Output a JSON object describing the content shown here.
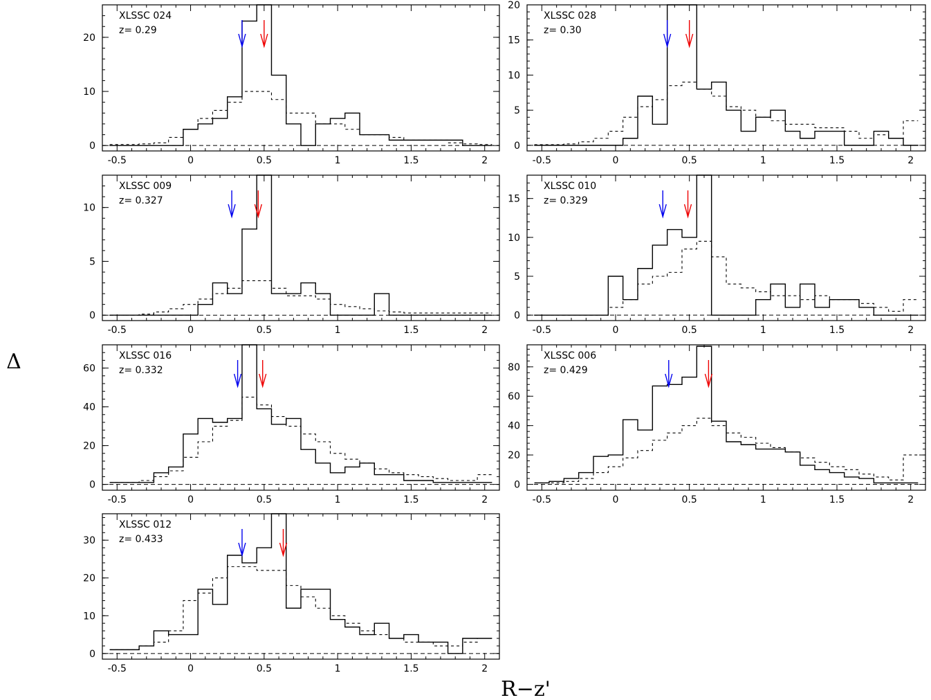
{
  "figure": {
    "ylabel": "Δ",
    "xlabel": "R−z'"
  },
  "chart_data": [
    {
      "type": "histogram",
      "name": "XLSSC 024",
      "redshift_label": "z= 0.29",
      "xlim": [
        -0.6,
        2.1
      ],
      "ylim": [
        -1,
        26
      ],
      "xticks": [
        -0.5,
        0,
        0.5,
        1,
        1.5,
        2
      ],
      "xtick_labels": [
        "-0.5",
        "0",
        "0.5",
        "1",
        "1.5",
        "2"
      ],
      "yticks": [
        0,
        10,
        20
      ],
      "ytick_labels": [
        "0",
        "10",
        "20"
      ],
      "bin_edges": [
        -0.55,
        -0.45,
        -0.35,
        -0.25,
        -0.15,
        -0.05,
        0.05,
        0.15,
        0.25,
        0.35,
        0.45,
        0.55,
        0.65,
        0.75,
        0.85,
        0.95,
        1.05,
        1.15,
        1.25,
        1.35,
        1.45,
        1.55,
        1.65,
        1.75,
        1.85,
        1.95,
        2.05
      ],
      "observed": [
        0,
        0,
        0,
        0,
        0,
        3,
        4,
        5,
        9,
        23,
        26,
        13,
        4,
        0,
        4,
        5,
        6,
        2,
        2,
        1,
        1,
        1,
        1,
        1,
        0,
        0
      ],
      "background": [
        0.2,
        0.2,
        0.3,
        0.5,
        1.5,
        3,
        5,
        6.5,
        8,
        10,
        10,
        8.5,
        6,
        6,
        4,
        4,
        3,
        2,
        2,
        1.5,
        1,
        1,
        1,
        0.5,
        0.3,
        0.2
      ],
      "blue_arrow_x": 0.35,
      "red_arrow_x": 0.5
    },
    {
      "type": "histogram",
      "name": "XLSSC 028",
      "redshift_label": "z= 0.30",
      "xlim": [
        -0.6,
        2.1
      ],
      "ylim": [
        -0.8,
        20
      ],
      "xticks": [
        -0.5,
        0,
        0.5,
        1,
        1.5,
        2
      ],
      "xtick_labels": [
        "-0.5",
        "0",
        "0.5",
        "1",
        "1.5",
        "2"
      ],
      "yticks": [
        0,
        5,
        10,
        15,
        20
      ],
      "ytick_labels": [
        "0",
        "5",
        "10",
        "15",
        "20"
      ],
      "bin_edges": [
        -0.55,
        -0.45,
        -0.35,
        -0.25,
        -0.15,
        -0.05,
        0.05,
        0.15,
        0.25,
        0.35,
        0.45,
        0.55,
        0.65,
        0.75,
        0.85,
        0.95,
        1.05,
        1.15,
        1.25,
        1.35,
        1.45,
        1.55,
        1.65,
        1.75,
        1.85,
        1.95,
        2.05
      ],
      "observed": [
        0,
        0,
        0,
        0,
        0,
        0,
        1,
        7,
        3,
        20,
        20,
        8,
        9,
        5,
        2,
        4,
        5,
        2,
        1,
        2,
        2,
        0,
        0,
        2,
        1,
        0
      ],
      "background": [
        0.1,
        0.1,
        0.2,
        0.5,
        1,
        2,
        4,
        5.5,
        6.5,
        8.5,
        9,
        8,
        7,
        5.5,
        5,
        4,
        3.5,
        3,
        3,
        2.5,
        2.5,
        2,
        1,
        1.5,
        1,
        3.5
      ],
      "blue_arrow_x": 0.35,
      "red_arrow_x": 0.5
    },
    {
      "type": "histogram",
      "name": "XLSSC 009",
      "redshift_label": "z= 0.327",
      "xlim": [
        -0.6,
        2.1
      ],
      "ylim": [
        -0.5,
        13
      ],
      "xticks": [
        -0.5,
        0,
        0.5,
        1,
        1.5,
        2
      ],
      "xtick_labels": [
        "-0.5",
        "0",
        "0.5",
        "1",
        "1.5",
        "2"
      ],
      "yticks": [
        0,
        5,
        10
      ],
      "ytick_labels": [
        "0",
        "5",
        "10"
      ],
      "bin_edges": [
        -0.55,
        -0.45,
        -0.35,
        -0.25,
        -0.15,
        -0.05,
        0.05,
        0.15,
        0.25,
        0.35,
        0.45,
        0.55,
        0.65,
        0.75,
        0.85,
        0.95,
        1.05,
        1.15,
        1.25,
        1.35,
        1.45,
        1.55,
        1.65,
        1.75,
        1.85,
        1.95,
        2.05
      ],
      "observed": [
        0,
        0,
        0,
        0,
        0,
        0,
        1,
        3,
        2,
        8,
        13,
        2,
        2,
        3,
        2,
        0,
        0,
        0,
        2,
        0,
        0,
        0,
        0,
        0,
        0,
        0
      ],
      "background": [
        0,
        0,
        0.1,
        0.3,
        0.6,
        1,
        1.5,
        2,
        2.5,
        3.2,
        3.2,
        2.5,
        1.8,
        1.8,
        1.5,
        1,
        0.8,
        0.6,
        0.4,
        0.3,
        0.2,
        0.2,
        0.2,
        0.2,
        0.2,
        0.2
      ],
      "blue_arrow_x": 0.28,
      "red_arrow_x": 0.46
    },
    {
      "type": "histogram",
      "name": "XLSSC 010",
      "redshift_label": "z= 0.329",
      "xlim": [
        -0.6,
        2.1
      ],
      "ylim": [
        -0.7,
        18
      ],
      "xticks": [
        -0.5,
        0,
        0.5,
        1,
        1.5,
        2
      ],
      "xtick_labels": [
        "-0.5",
        "0",
        "0.5",
        "1",
        "1.5",
        "2"
      ],
      "yticks": [
        0,
        5,
        10,
        15
      ],
      "ytick_labels": [
        "0",
        "5",
        "10",
        "15"
      ],
      "bin_edges": [
        -0.55,
        -0.45,
        -0.35,
        -0.25,
        -0.15,
        -0.05,
        0.05,
        0.15,
        0.25,
        0.35,
        0.45,
        0.55,
        0.65,
        0.75,
        0.85,
        0.95,
        1.05,
        1.15,
        1.25,
        1.35,
        1.45,
        1.55,
        1.65,
        1.75,
        1.85,
        1.95,
        2.05
      ],
      "observed": [
        0,
        0,
        0,
        0,
        0,
        5,
        2,
        6,
        9,
        11,
        10,
        18,
        0,
        0,
        0,
        2,
        4,
        1,
        4,
        1,
        2,
        2,
        1,
        0,
        0,
        0
      ],
      "background": [
        0,
        0,
        0,
        0,
        0,
        1,
        2,
        4,
        5,
        5.5,
        8.5,
        9.5,
        7.5,
        4,
        3.5,
        3,
        2.5,
        2.5,
        2,
        2.5,
        2,
        2,
        1.5,
        1,
        0.5,
        2
      ],
      "blue_arrow_x": 0.32,
      "red_arrow_x": 0.49
    },
    {
      "type": "histogram",
      "name": "XLSSC 016",
      "redshift_label": "z= 0.332",
      "xlim": [
        -0.6,
        2.1
      ],
      "ylim": [
        -3,
        72
      ],
      "xticks": [
        -0.5,
        0,
        0.5,
        1,
        1.5,
        2
      ],
      "xtick_labels": [
        "-0.5",
        "0",
        "0.5",
        "1",
        "1.5",
        "2"
      ],
      "yticks": [
        0,
        20,
        40,
        60
      ],
      "ytick_labels": [
        "0",
        "20",
        "40",
        "60"
      ],
      "bin_edges": [
        -0.55,
        -0.45,
        -0.35,
        -0.25,
        -0.15,
        -0.05,
        0.05,
        0.15,
        0.25,
        0.35,
        0.45,
        0.55,
        0.65,
        0.75,
        0.85,
        0.95,
        1.05,
        1.15,
        1.25,
        1.35,
        1.45,
        1.55,
        1.65,
        1.75,
        1.85,
        1.95,
        2.05
      ],
      "observed": [
        1,
        1,
        1,
        6,
        9,
        26,
        34,
        32,
        34,
        72,
        39,
        31,
        34,
        18,
        11,
        6,
        9,
        11,
        5,
        5,
        2,
        2,
        1,
        1,
        1,
        1
      ],
      "background": [
        1,
        1,
        2,
        4,
        7,
        14,
        22,
        30,
        33,
        45,
        41,
        35,
        30,
        26,
        22,
        16,
        13,
        11,
        8,
        6,
        5,
        4,
        3,
        2,
        2,
        5
      ],
      "blue_arrow_x": 0.32,
      "red_arrow_x": 0.49
    },
    {
      "type": "histogram",
      "name": "XLSSC 006",
      "redshift_label": "z= 0.429",
      "xlim": [
        -0.6,
        2.1
      ],
      "ylim": [
        -4,
        95
      ],
      "xticks": [
        -0.5,
        0,
        0.5,
        1,
        1.5,
        2
      ],
      "xtick_labels": [
        "-0.5",
        "0",
        "0.5",
        "1",
        "1.5",
        "2"
      ],
      "yticks": [
        0,
        20,
        40,
        60,
        80
      ],
      "ytick_labels": [
        "0",
        "20",
        "40",
        "60",
        "80"
      ],
      "bin_edges": [
        -0.55,
        -0.45,
        -0.35,
        -0.25,
        -0.15,
        -0.05,
        0.05,
        0.15,
        0.25,
        0.35,
        0.45,
        0.55,
        0.65,
        0.75,
        0.85,
        0.95,
        1.05,
        1.15,
        1.25,
        1.35,
        1.45,
        1.55,
        1.65,
        1.75,
        1.85,
        1.95,
        2.05
      ],
      "observed": [
        1,
        2,
        4,
        8,
        19,
        20,
        44,
        37,
        67,
        68,
        73,
        94,
        43,
        29,
        27,
        24,
        24,
        22,
        13,
        10,
        8,
        5,
        4,
        1,
        1,
        1
      ],
      "background": [
        1,
        1,
        2,
        4,
        8,
        12,
        18,
        23,
        30,
        35,
        40,
        45,
        40,
        35,
        32,
        28,
        25,
        22,
        18,
        15,
        12,
        10,
        7,
        5,
        3,
        20
      ],
      "blue_arrow_x": 0.36,
      "red_arrow_x": 0.63
    },
    {
      "type": "histogram",
      "name": "XLSSC 012",
      "redshift_label": "z= 0.433",
      "xlim": [
        -0.6,
        2.1
      ],
      "ylim": [
        -1.5,
        37
      ],
      "xticks": [
        -0.5,
        0,
        0.5,
        1,
        1.5,
        2
      ],
      "xtick_labels": [
        "-0.5",
        "0",
        "0.5",
        "1",
        "1.5",
        "2"
      ],
      "yticks": [
        0,
        10,
        20,
        30
      ],
      "ytick_labels": [
        "0",
        "10",
        "20",
        "30"
      ],
      "bin_edges": [
        -0.55,
        -0.45,
        -0.35,
        -0.25,
        -0.15,
        -0.05,
        0.05,
        0.15,
        0.25,
        0.35,
        0.45,
        0.55,
        0.65,
        0.75,
        0.85,
        0.95,
        1.05,
        1.15,
        1.25,
        1.35,
        1.45,
        1.55,
        1.65,
        1.75,
        1.85,
        1.95,
        2.05
      ],
      "observed": [
        1,
        1,
        2,
        6,
        5,
        5,
        17,
        13,
        26,
        24,
        28,
        37,
        12,
        17,
        17,
        9,
        7,
        5,
        8,
        4,
        5,
        3,
        3,
        0,
        4,
        4
      ],
      "background": [
        1,
        1,
        2,
        3,
        6,
        14,
        16,
        20,
        23,
        23,
        22,
        22,
        18,
        15,
        12,
        10,
        8,
        6,
        5,
        4,
        3,
        3,
        2,
        2,
        3,
        4
      ],
      "blue_arrow_x": 0.35,
      "red_arrow_x": 0.63
    }
  ]
}
